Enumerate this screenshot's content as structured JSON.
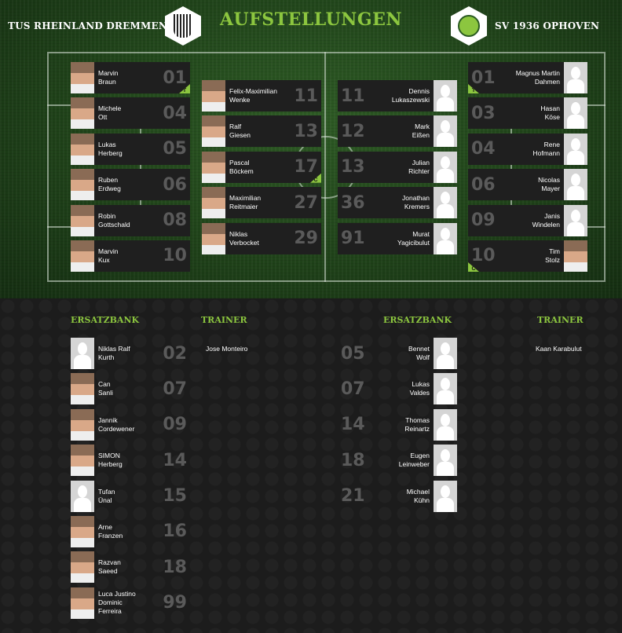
{
  "title": "AUFSTELLUNGEN",
  "home": {
    "name": "TUS RHEINLAND DREMMEN II",
    "lineup_col1": [
      {
        "first": "Marvin",
        "last": "Braun",
        "number": "01",
        "badge": "T",
        "has_photo": true
      },
      {
        "first": "Michele",
        "last": "Ott",
        "number": "04",
        "has_photo": true
      },
      {
        "first": "Lukas",
        "last": "Herberg",
        "number": "05",
        "has_photo": true
      },
      {
        "first": "Ruben",
        "last": "Erdweg",
        "number": "06",
        "has_photo": true
      },
      {
        "first": "Robin",
        "last": "Gottschald",
        "number": "08",
        "has_photo": true
      },
      {
        "first": "Marvin",
        "last": "Kux",
        "number": "10",
        "has_photo": true
      }
    ],
    "lineup_col2": [
      {
        "first": "Felix-Maximilian",
        "last": "Wenke",
        "number": "11",
        "has_photo": true
      },
      {
        "first": "Ralf",
        "last": "Giesen",
        "number": "13",
        "has_photo": true
      },
      {
        "first": "Pascal",
        "last": "Böckem",
        "number": "17",
        "badge": "C",
        "has_photo": true
      },
      {
        "first": "Maximilian",
        "last": "Reitmaier",
        "number": "27",
        "has_photo": true
      },
      {
        "first": "Niklas",
        "last": "Verbocket",
        "number": "29",
        "has_photo": true
      }
    ],
    "bench_label": "ERSATZBANK",
    "bench": [
      {
        "first": "Niklas Ralf",
        "last": "Kurth",
        "number": "02",
        "has_photo": false
      },
      {
        "first": "Can",
        "last": "Sanli",
        "number": "07",
        "has_photo": true
      },
      {
        "first": "Jannik",
        "last": "Cordewener",
        "number": "09",
        "has_photo": true
      },
      {
        "first": "SIMON",
        "last": "Herberg",
        "number": "14",
        "has_photo": true
      },
      {
        "first": "Tufan",
        "last": "Ünal",
        "number": "15",
        "has_photo": false
      },
      {
        "first": "Arne",
        "last": "Franzen",
        "number": "16",
        "has_photo": true
      },
      {
        "first": "Razvan",
        "last": "Saeed",
        "number": "18",
        "has_photo": true
      },
      {
        "first": "Luca Justino Dominic",
        "last": "Ferreira",
        "number": "99",
        "has_photo": true
      }
    ],
    "trainer_label": "TRAINER",
    "trainer": "Jose Monteiro"
  },
  "away": {
    "name": "SV 1936 OPHOVEN",
    "lineup_col1": [
      {
        "first": "Dennis",
        "last": "Lukaszewski",
        "number": "11",
        "has_photo": false
      },
      {
        "first": "Mark",
        "last": "Eißen",
        "number": "12",
        "has_photo": false
      },
      {
        "first": "Julian",
        "last": "Richter",
        "number": "13",
        "has_photo": false
      },
      {
        "first": "Jonathan",
        "last": "Kremers",
        "number": "36",
        "has_photo": false
      },
      {
        "first": "Murat",
        "last": "Yagicibulut",
        "number": "91",
        "has_photo": false
      }
    ],
    "lineup_col2": [
      {
        "first": "Magnus Martin",
        "last": "Dahmen",
        "number": "01",
        "badge": "T",
        "has_photo": false
      },
      {
        "first": "Hasan",
        "last": "Köse",
        "number": "03",
        "has_photo": false
      },
      {
        "first": "Rene",
        "last": "Hofmann",
        "number": "04",
        "has_photo": false
      },
      {
        "first": "Nicolas",
        "last": "Mayer",
        "number": "06",
        "has_photo": false
      },
      {
        "first": "Janis",
        "last": "Windelen",
        "number": "09",
        "has_photo": false
      },
      {
        "first": "Tim",
        "last": "Stolz",
        "number": "10",
        "badge": "C",
        "has_photo": true
      }
    ],
    "bench_label": "ERSATZBANK",
    "bench": [
      {
        "first": "Bennet",
        "last": "Wolf",
        "number": "05",
        "has_photo": false
      },
      {
        "first": "Lukas",
        "last": "Valdes",
        "number": "07",
        "has_photo": false
      },
      {
        "first": "Thomas",
        "last": "Reinartz",
        "number": "14",
        "has_photo": false
      },
      {
        "first": "Eugen",
        "last": "Leinweber",
        "number": "18",
        "has_photo": false
      },
      {
        "first": "Michael",
        "last": "Kühn",
        "number": "21",
        "has_photo": false
      }
    ],
    "trainer_label": "TRAINER",
    "trainer": "Kaan Karabulut"
  },
  "colors": {
    "accent": "#8cc63f",
    "card": "#1f1f1f",
    "number": "#5a5a5a"
  }
}
